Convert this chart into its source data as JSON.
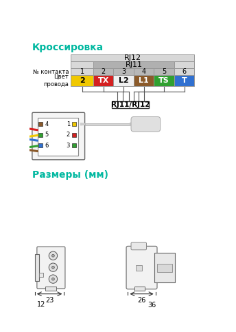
{
  "title_crossover": "Кроссировка",
  "title_dimensions": "Размеры (мм)",
  "title_color": "#00b8a0",
  "bg_color": "#ffffff",
  "rj12_label": "RJ12",
  "rj11_label": "RJ11",
  "rj11_rj12_label": "RJ11/RJ12",
  "contact_label": "№ контакта",
  "wire_label": "Цвет\nпровода",
  "contacts": [
    "1",
    "2",
    "3",
    "4",
    "5",
    "6"
  ],
  "wire_names": [
    "2",
    "TX",
    "L2",
    "L1",
    "TS",
    "T"
  ],
  "wire_colors": [
    "#f0c800",
    "#d42020",
    "#f0f0f0",
    "#8B5A2A",
    "#30a030",
    "#3070d0"
  ],
  "wire_text_colors": [
    "#000000",
    "#ffffff",
    "#000000",
    "#ffffff",
    "#ffffff",
    "#ffffff"
  ],
  "table_border": "#999999",
  "rj12_bg": "#d8d8d8",
  "rj11_bg": "#b0b0b0",
  "contact_bg_outer": "#d8d8d8",
  "contact_bg_inner": "#b8b8b8",
  "dim1": "23",
  "dim2": "12",
  "dim3": "26",
  "dim4": "36",
  "wire_colors_socket": [
    "#8B5A2A",
    "#30a030",
    "#3070d0",
    "#f0c800",
    "#d42020",
    "#30a030"
  ],
  "sock_left_colors": [
    "#8B5A2A",
    "#30a030",
    "#3070d0"
  ],
  "sock_left_nums": [
    "4",
    "5",
    "6"
  ],
  "sock_right_colors": [
    "#f0c800",
    "#d42020",
    "#30a030"
  ],
  "sock_right_nums": [
    "1",
    "2",
    "3"
  ]
}
